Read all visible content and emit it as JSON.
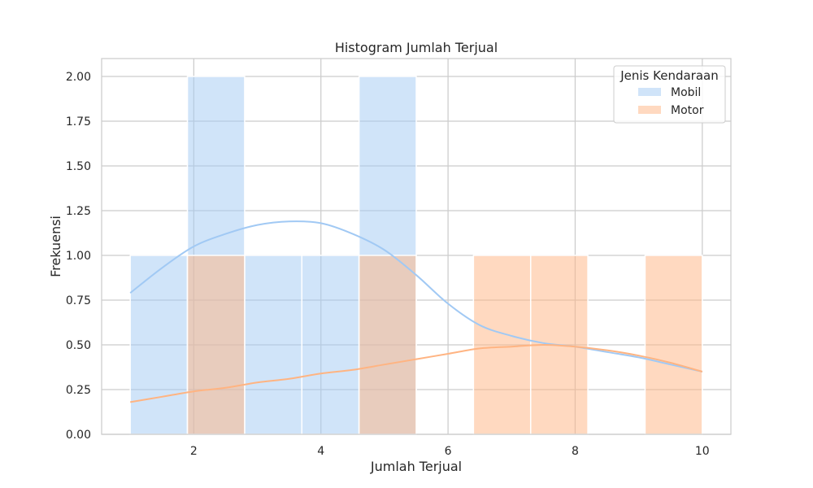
{
  "chart_data": {
    "type": "histogram",
    "title": "Histogram Jumlah Terjual",
    "xlabel": "Jumlah Terjual",
    "ylabel": "Frekuensi",
    "xlim": [
      0.55,
      10.45
    ],
    "ylim": [
      0,
      2.1
    ],
    "xticks": [
      2,
      4,
      6,
      8,
      10
    ],
    "yticks": [
      0.0,
      0.25,
      0.5,
      0.75,
      1.0,
      1.25,
      1.5,
      1.75,
      2.0
    ],
    "ytick_labels": [
      "0.00",
      "0.25",
      "0.50",
      "0.75",
      "1.00",
      "1.25",
      "1.50",
      "1.75",
      "2.00"
    ],
    "grid": true,
    "legend": {
      "title": "Jenis Kendaraan",
      "position": "top-right"
    },
    "bin_edges": [
      1.0,
      1.9,
      2.8,
      3.7,
      4.6,
      5.5,
      6.4,
      7.3,
      8.2,
      9.1,
      10.0
    ],
    "series": [
      {
        "name": "Mobil",
        "color": "#a1c9f4",
        "counts": [
          1,
          2,
          1,
          1,
          2,
          0,
          0,
          0,
          0,
          0
        ],
        "kde_x": [
          1.0,
          1.5,
          2.0,
          2.5,
          3.0,
          3.5,
          4.0,
          4.5,
          5.0,
          5.5,
          6.0,
          6.5,
          7.0,
          7.5,
          8.0,
          8.5,
          9.0,
          9.5,
          10.0
        ],
        "kde_y": [
          0.79,
          0.93,
          1.05,
          1.12,
          1.17,
          1.19,
          1.18,
          1.12,
          1.03,
          0.89,
          0.73,
          0.61,
          0.55,
          0.51,
          0.49,
          0.46,
          0.43,
          0.39,
          0.35
        ]
      },
      {
        "name": "Motor",
        "color": "#ffb482",
        "counts": [
          0,
          1,
          0,
          0,
          1,
          0,
          1,
          1,
          0,
          1
        ],
        "kde_x": [
          1.0,
          1.5,
          2.0,
          2.5,
          3.0,
          3.5,
          4.0,
          4.5,
          5.0,
          5.5,
          6.0,
          6.5,
          7.0,
          7.5,
          8.0,
          8.5,
          9.0,
          9.5,
          10.0
        ],
        "kde_y": [
          0.18,
          0.21,
          0.24,
          0.26,
          0.29,
          0.31,
          0.34,
          0.36,
          0.39,
          0.42,
          0.45,
          0.48,
          0.49,
          0.5,
          0.49,
          0.47,
          0.44,
          0.4,
          0.35
        ]
      }
    ]
  }
}
